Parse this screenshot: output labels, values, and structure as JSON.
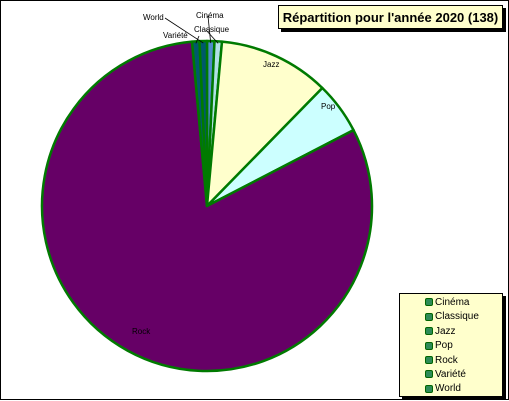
{
  "chart_data": {
    "type": "pie",
    "title": "Répartition pour l'année 2020 (138)",
    "categories": [
      "Cinéma",
      "Classique",
      "Jazz",
      "Pop",
      "Rock",
      "Variété",
      "World"
    ],
    "values": [
      1,
      1,
      15,
      7,
      112,
      1,
      1
    ],
    "colors": [
      "#4f8cc9",
      "#b0e0e6",
      "#ffffcc",
      "#ccffff",
      "#660066",
      "#00596b",
      "#00596b"
    ],
    "slice_border_color": "#007a00",
    "legend": {
      "placement": "bottom-right",
      "entries": [
        "Cinéma",
        "Classique",
        "Jazz",
        "Pop",
        "Rock",
        "Variété",
        "World"
      ]
    },
    "slice_labels": [
      "Cinéma",
      "Classique",
      "Jazz",
      "Pop",
      "Rock",
      "Variété",
      "World"
    ]
  }
}
